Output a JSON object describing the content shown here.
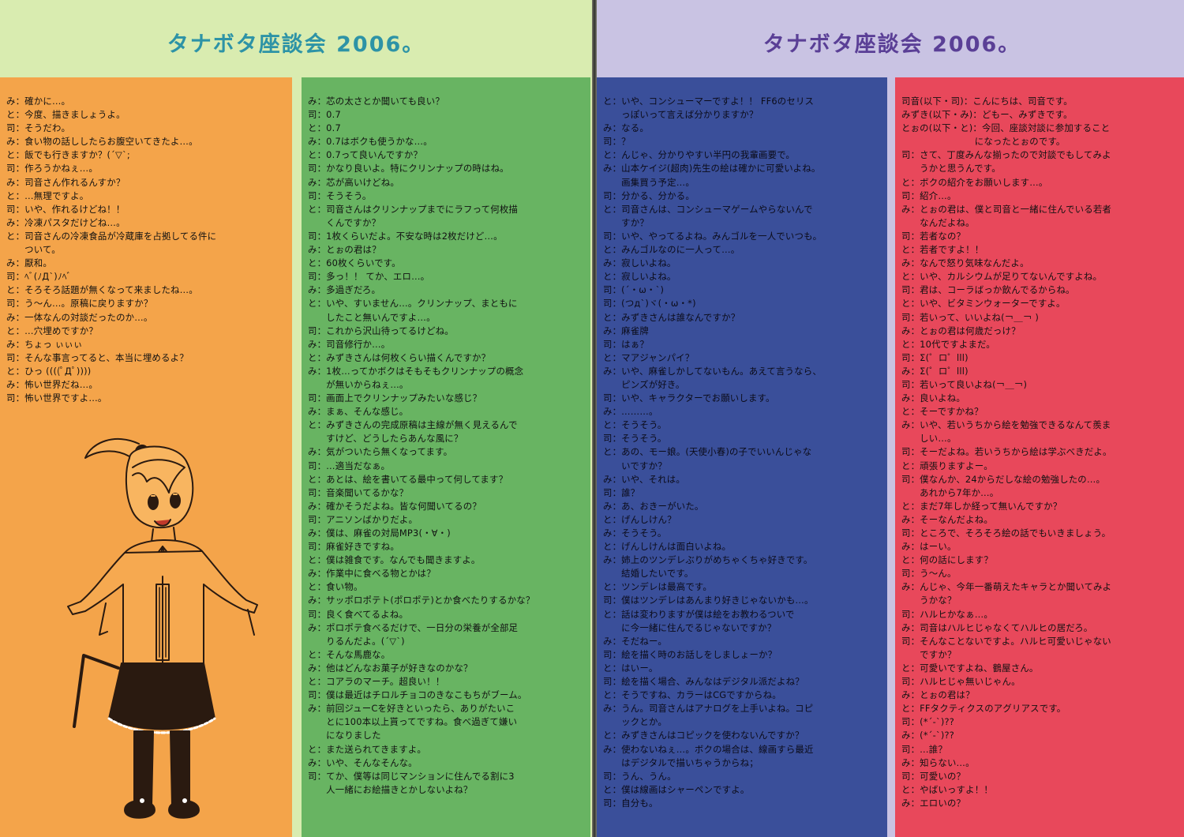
{
  "title_left": "タナボタ座談会 2006。",
  "title_right": "タナボタ座談会 2006。",
  "colors": {
    "left_background": "#d9ecb0",
    "right_background": "#c9c3e3",
    "orange_panel": "#f4a44a",
    "green_panel": "#68b462",
    "blue_panel": "#3a4f9a",
    "red_panel": "#e8485b",
    "title_left": "#2d93a6",
    "title_right": "#5a3f96"
  },
  "col_orange": [
    "み：確かに…。",
    "と：今度、描きましょうよ。",
    "司：そうだわ。",
    "み：食い物の話ししたらお腹空いてきたよ…。",
    "と：飯でも行きますか？(´▽`;",
    "司：作ろうかねぇ…。",
    "み：司音さん作れるんすか？",
    "と：…無理ですよ。",
    "司：いや、作れるけどね！！",
    "み：冷凍パスタだけどね…。",
    "と：司音さんの冷凍食品が冷蔵庫を占拠してる件に",
    "　　ついて。",
    "み：厭和。",
    "司：ﾍﾞ(ﾉД`)ﾉﾍﾞ",
    "と：そろそろ話題が無くなって来ましたね…。",
    "司：う～ん…。原稿に戻りますか？",
    "み：一体なんの対談だったのか…。",
    "と：…穴埋めですか？",
    "み：ちょっ ぃぃぃ",
    "司：そんな事言ってると、本当に埋めるよ？",
    "と：ひっ ((((ﾟДﾟ))))",
    "み：怖い世界だね…。",
    "司：怖い世界ですよ…。"
  ],
  "col_green": [
    "み：芯の太さとか聞いても良い？",
    "司：0.7",
    "と：0.7",
    "み：0.7はボクも使うかな…。",
    "と：0.7って良いんですか？",
    "司：かなり良いよ。特にクリンナップの時はね。",
    "み：芯が高いけどね。",
    "司：そうそう。",
    "と：司音さんはクリンナップまでにラフって何枚描",
    "　　くんですか？",
    "司：1枚くらいだよ。不安な時は2枚だけど…。",
    "み：とぉの君は？",
    "と：60枚くらいです。",
    "司：多っ！！ てか、エロ…。",
    "み：多過ぎだろ。",
    "と：いや、すいません…。クリンナップ、まともに",
    "　　したこと無いんですよ…。",
    "司：これから沢山待ってるけどね。",
    "み：司音修行か…。",
    "と：みずきさんは何枚くらい描くんですか？",
    "み：1枚…ってかボクはそもそもクリンナップの概念",
    "　　が無いからねぇ…。",
    "司：画面上でクリンナップみたいな感じ？",
    "み：まぁ、そんな感じ。",
    "と：みずきさんの完成原稿は主線が無く見えるんで",
    "　　すけど、どうしたらあんな風に？",
    "み：気がついたら無くなってます。",
    "司：…適当だなぁ。",
    "と：あとは、絵を書いてる最中って何してます？",
    "司：音楽聞いてるかな？",
    "み：確かそうだよね。皆な何聞いてるの？",
    "司：アニソンばかりだよ。",
    "み：僕は、麻雀の対局MP3(・∀・)",
    "司：麻雀好きですね。",
    "と：僕は雑食です。なんでも聞きますよ。",
    "み：作業中に食べる物とかは？",
    "と：食い物。",
    "み：サッポロポテト(ポロポテ)とか食べたりするかな？",
    "司：良く食べてるよね。",
    "み：ポロポテ食べるだけで、一日分の栄養が全部足",
    "　　りるんだよ。(´▽`)",
    "と：そんな馬鹿な。",
    "み：他はどんなお菓子が好きなのかな？",
    "と：コアラのマーチ。超良い！！",
    "司：僕は最近はチロルチョコのきなこもちがブーム。",
    "み：前回ジューCを好きといったら、ありがたいこ",
    "　　とに100本以上貰ってですね。食べ過ぎて嫌い",
    "　　になりました",
    "と：また送られてきますよ。",
    "み：いや、そんなそんな。",
    "司：てか、僕等は同じマンションに住んでる割に3",
    "　　人一緒にお絵描きとかしないよね？"
  ],
  "col_blue": [
    "と：いや、コンシューマーですよ！！ FF6のセリス",
    "　　っぽいって言えば分かりますか？",
    "み：なる。",
    "司：？",
    "と：んじゃ、分かりやすい半円の我輩画要で。",
    "み：山本ケイジ(超肉)先生の絵は確かに可愛いよね。",
    "　　画集買う予定…。",
    "司：分かる、分かる。",
    "と：司音さんは、コンシューマゲームやらないんで",
    "　　すか？",
    "司：いや、やってるよね。みんゴルを一人でいつも。",
    "と：みんゴルなのに一人って…。",
    "み：寂しいよね。",
    "と：寂しいよね。",
    "司：(´・ω・`)",
    "司：(つд`)ヾ(・ω・*)",
    "と：みずきさんは誰なんですか？",
    "み：麻雀牌",
    "司：はぁ？",
    "と：マアジャンパイ？",
    "み：いや、麻雀しかしてないもん。あえて言うなら、",
    "　　ピンズが好き。",
    "司：いや、キャラクターでお願いします。",
    "み：………。",
    "と：そうそう。",
    "司：そうそう。",
    "と：あの、モー娘。(天使小春)の子でいいんじゃな",
    "　　いですか？",
    "み：いや、それは。",
    "司：誰？",
    "み：あ、おきーがいた。",
    "と：げんしけん？",
    "み：そうそう。",
    "と：げんしけんは面白いよね。",
    "み：姉上のツンデレぶりがめちゃくちゃ好きです。",
    "　　結婚したいです。",
    "と：ツンデレは最高です。",
    "司：僕はツンデレはあんまり好きじゃないかも…。",
    "と：話は変わりますが僕は絵をお教わるついで",
    "　　に今一緒に住んでるじゃないですか？",
    "み：そだねー。",
    "司：絵を描く時のお話しをしましょーか？",
    "と：はいー。",
    "司：絵を描く場合、みんなはデジタル派だよね？",
    "と：そうですね、カラーはCGですからね。",
    "み：うん。司音さんはアナログを上手いよね。コピ",
    "　　ックとか。",
    "と：みずきさんはコピックを使わないんですか？",
    "み：使わないねぇ…。ボクの場合は、線画すら最近",
    "　　はデジタルで描いちゃうからね；",
    "司：うん、うん。",
    "と：僕は線画はシャーペンですよ。",
    "司：自分も。"
  ],
  "col_red": [
    "司音(以下・司)：こんにちは、司音です。",
    "みずき(以下・み)：どもー、みずきです。",
    "とぉの(以下・と)：今回、座談対談に参加すること",
    "　　　　　　　　になったとぉのです。",
    "司：さて、丁度みんな揃ったので対談でもしてみよ",
    "　　うかと思うんです。",
    "と：ボクの紹介をお願いします…。",
    "司：紹介…。",
    "み：とぉの君は、僕と司音と一緒に住んでいる若者",
    "　　なんだよね。",
    "司：若者なの？",
    "と：若者ですよ！！",
    "み：なんで怒り気味なんだよ。",
    "と：いや、カルシウムが足りてないんですよね。",
    "司：君は、コーラばっか飲んでるからね。",
    "と：いや、ビタミンウォーターですよ。",
    "司：若いって、いいよね(￢＿￢ )",
    "み：とぉの君は何歳だっけ？",
    "と：10代ですよまだ。",
    "司：Σ(゜ロ゜lll)",
    "み：Σ(゜ロ゜lll)",
    "司：若いって良いよね(￢＿￢)",
    "み：良いよね。",
    "と：そーですかね？",
    "み：いや、若いうちから絵を勉強できるなんて羨ま",
    "　　しい…。",
    "司：そーだよね。若いうちから絵は学ぶべきだよ。",
    "と：頑張りますよー。",
    "司：僕なんか、24からだしな絵の勉強したの…。",
    "　　あれから7年か…。",
    "と：まだ7年しか経って無いんですか？",
    "み：そーなんだよね。",
    "司：ところで、そろそろ絵の話でもいきましょう。",
    "み：はーい。",
    "と：何の話にします？",
    "司：う～ん。",
    "み：んじゃ、今年一番萌えたキャラとか聞いてみよ",
    "　　うかな？",
    "司：ハルヒかなぁ…。",
    "み：司音はハルヒじゃなくてハルヒの居だろ。",
    "司：そんなことないですよ。ハルヒ可愛いじゃない",
    "　　ですか？",
    "と：可愛いですよね、鶴屋さん。",
    "司：ハルヒじゃ無いじゃん。",
    "み：とぉの君は？",
    "と：FFタクティクスのアグリアスです。",
    "司：(*´-`)??",
    "み：(*´-`)??",
    "司：…誰？",
    "み：知らない…。",
    "司：可愛いの？",
    "と：やばいっすよ！！",
    "み：エロいの？"
  ]
}
